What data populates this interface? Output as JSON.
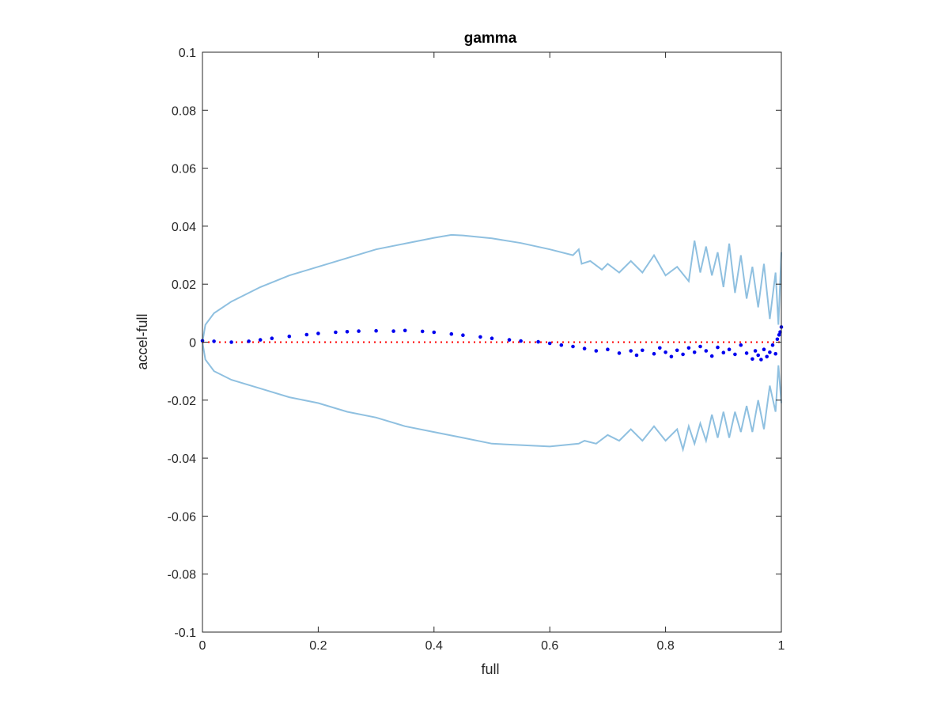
{
  "chart_data": {
    "type": "scatter",
    "title": "gamma",
    "xlabel": "full",
    "ylabel": "accel-full",
    "xlim": [
      0,
      1
    ],
    "ylim": [
      -0.1,
      0.1
    ],
    "x_ticks": [
      0,
      0.2,
      0.4,
      0.6,
      0.8,
      1
    ],
    "x_tick_labels": [
      "0",
      "0.2",
      "0.4",
      "0.6",
      "0.8",
      "1"
    ],
    "y_ticks": [
      -0.1,
      -0.08,
      -0.06,
      -0.04,
      -0.02,
      0,
      0.02,
      0.04,
      0.06,
      0.08,
      0.1
    ],
    "y_tick_labels": [
      "-0.1",
      "-0.08",
      "-0.06",
      "-0.04",
      "-0.02",
      "0",
      "0.02",
      "0.04",
      "0.06",
      "0.08",
      "0.1"
    ],
    "grid": false,
    "colors": {
      "band": "#8fc0e0",
      "points": "#0000ee",
      "zero_line": "#ff0000",
      "axes": "#262626"
    },
    "series": [
      {
        "kind": "band-upper",
        "points": [
          [
            0,
            0
          ],
          [
            0.005,
            0.006
          ],
          [
            0.02,
            0.01
          ],
          [
            0.05,
            0.014
          ],
          [
            0.1,
            0.019
          ],
          [
            0.15,
            0.023
          ],
          [
            0.2,
            0.026
          ],
          [
            0.25,
            0.029
          ],
          [
            0.3,
            0.032
          ],
          [
            0.35,
            0.034
          ],
          [
            0.4,
            0.036
          ],
          [
            0.43,
            0.037
          ],
          [
            0.45,
            0.0368
          ],
          [
            0.5,
            0.0358
          ],
          [
            0.55,
            0.0342
          ],
          [
            0.6,
            0.032
          ],
          [
            0.64,
            0.03
          ],
          [
            0.65,
            0.032
          ],
          [
            0.655,
            0.027
          ],
          [
            0.67,
            0.028
          ],
          [
            0.69,
            0.025
          ],
          [
            0.7,
            0.027
          ],
          [
            0.72,
            0.024
          ],
          [
            0.74,
            0.028
          ],
          [
            0.76,
            0.024
          ],
          [
            0.78,
            0.03
          ],
          [
            0.8,
            0.023
          ],
          [
            0.82,
            0.026
          ],
          [
            0.84,
            0.021
          ],
          [
            0.85,
            0.035
          ],
          [
            0.86,
            0.024
          ],
          [
            0.87,
            0.033
          ],
          [
            0.88,
            0.023
          ],
          [
            0.89,
            0.031
          ],
          [
            0.9,
            0.019
          ],
          [
            0.91,
            0.034
          ],
          [
            0.92,
            0.017
          ],
          [
            0.93,
            0.03
          ],
          [
            0.94,
            0.015
          ],
          [
            0.95,
            0.026
          ],
          [
            0.96,
            0.012
          ],
          [
            0.97,
            0.027
          ],
          [
            0.98,
            0.008
          ],
          [
            0.99,
            0.024
          ],
          [
            0.995,
            0.006
          ],
          [
            1.0,
            0.031
          ]
        ]
      },
      {
        "kind": "band-lower",
        "points": [
          [
            0,
            0
          ],
          [
            0.005,
            -0.006
          ],
          [
            0.02,
            -0.01
          ],
          [
            0.05,
            -0.013
          ],
          [
            0.1,
            -0.016
          ],
          [
            0.15,
            -0.019
          ],
          [
            0.2,
            -0.021
          ],
          [
            0.25,
            -0.024
          ],
          [
            0.3,
            -0.026
          ],
          [
            0.35,
            -0.029
          ],
          [
            0.4,
            -0.031
          ],
          [
            0.45,
            -0.033
          ],
          [
            0.5,
            -0.035
          ],
          [
            0.55,
            -0.0355
          ],
          [
            0.6,
            -0.036
          ],
          [
            0.65,
            -0.035
          ],
          [
            0.66,
            -0.034
          ],
          [
            0.68,
            -0.035
          ],
          [
            0.7,
            -0.032
          ],
          [
            0.72,
            -0.034
          ],
          [
            0.74,
            -0.03
          ],
          [
            0.76,
            -0.034
          ],
          [
            0.78,
            -0.029
          ],
          [
            0.8,
            -0.034
          ],
          [
            0.82,
            -0.03
          ],
          [
            0.83,
            -0.037
          ],
          [
            0.84,
            -0.029
          ],
          [
            0.85,
            -0.035
          ],
          [
            0.86,
            -0.028
          ],
          [
            0.87,
            -0.034
          ],
          [
            0.88,
            -0.025
          ],
          [
            0.89,
            -0.033
          ],
          [
            0.9,
            -0.024
          ],
          [
            0.91,
            -0.033
          ],
          [
            0.92,
            -0.024
          ],
          [
            0.93,
            -0.031
          ],
          [
            0.94,
            -0.022
          ],
          [
            0.95,
            -0.031
          ],
          [
            0.96,
            -0.02
          ],
          [
            0.97,
            -0.03
          ],
          [
            0.98,
            -0.015
          ],
          [
            0.99,
            -0.024
          ],
          [
            0.995,
            -0.008
          ],
          [
            1.0,
            -0.021
          ]
        ]
      },
      {
        "kind": "points",
        "points": [
          [
            0,
            0.0005
          ],
          [
            0.02,
            0.0003
          ],
          [
            0.05,
            0
          ],
          [
            0.08,
            0.0003
          ],
          [
            0.1,
            0.0008
          ],
          [
            0.12,
            0.0013
          ],
          [
            0.15,
            0.002
          ],
          [
            0.18,
            0.0026
          ],
          [
            0.2,
            0.003
          ],
          [
            0.23,
            0.0034
          ],
          [
            0.25,
            0.0036
          ],
          [
            0.27,
            0.0038
          ],
          [
            0.3,
            0.0039
          ],
          [
            0.33,
            0.0038
          ],
          [
            0.35,
            0.004
          ],
          [
            0.38,
            0.0037
          ],
          [
            0.4,
            0.0034
          ],
          [
            0.43,
            0.0028
          ],
          [
            0.45,
            0.0024
          ],
          [
            0.48,
            0.0018
          ],
          [
            0.5,
            0.0013
          ],
          [
            0.53,
            0.0008
          ],
          [
            0.55,
            0.0004
          ],
          [
            0.58,
            0.0001
          ],
          [
            0.6,
            -0.0004
          ],
          [
            0.62,
            -0.001
          ],
          [
            0.64,
            -0.0015
          ],
          [
            0.66,
            -0.0022
          ],
          [
            0.68,
            -0.003
          ],
          [
            0.7,
            -0.0025
          ],
          [
            0.72,
            -0.0038
          ],
          [
            0.74,
            -0.003
          ],
          [
            0.75,
            -0.0045
          ],
          [
            0.76,
            -0.0028
          ],
          [
            0.78,
            -0.004
          ],
          [
            0.79,
            -0.002
          ],
          [
            0.8,
            -0.0035
          ],
          [
            0.81,
            -0.005
          ],
          [
            0.82,
            -0.0028
          ],
          [
            0.83,
            -0.0042
          ],
          [
            0.84,
            -0.002
          ],
          [
            0.85,
            -0.0035
          ],
          [
            0.86,
            -0.0015
          ],
          [
            0.87,
            -0.003
          ],
          [
            0.88,
            -0.0048
          ],
          [
            0.89,
            -0.0018
          ],
          [
            0.9,
            -0.0036
          ],
          [
            0.91,
            -0.0025
          ],
          [
            0.92,
            -0.0042
          ],
          [
            0.93,
            -0.001
          ],
          [
            0.94,
            -0.0038
          ],
          [
            0.95,
            -0.0058
          ],
          [
            0.955,
            -0.003
          ],
          [
            0.96,
            -0.0045
          ],
          [
            0.965,
            -0.006
          ],
          [
            0.97,
            -0.0025
          ],
          [
            0.975,
            -0.005
          ],
          [
            0.98,
            -0.0035
          ],
          [
            0.985,
            -0.001
          ],
          [
            0.99,
            -0.004
          ],
          [
            0.993,
            0.001
          ],
          [
            0.996,
            0.0025
          ],
          [
            0.998,
            0.0035
          ],
          [
            1.0,
            0.0052
          ]
        ]
      },
      {
        "kind": "zero-line",
        "points": [
          [
            0,
            0
          ],
          [
            1,
            0
          ]
        ]
      }
    ]
  }
}
